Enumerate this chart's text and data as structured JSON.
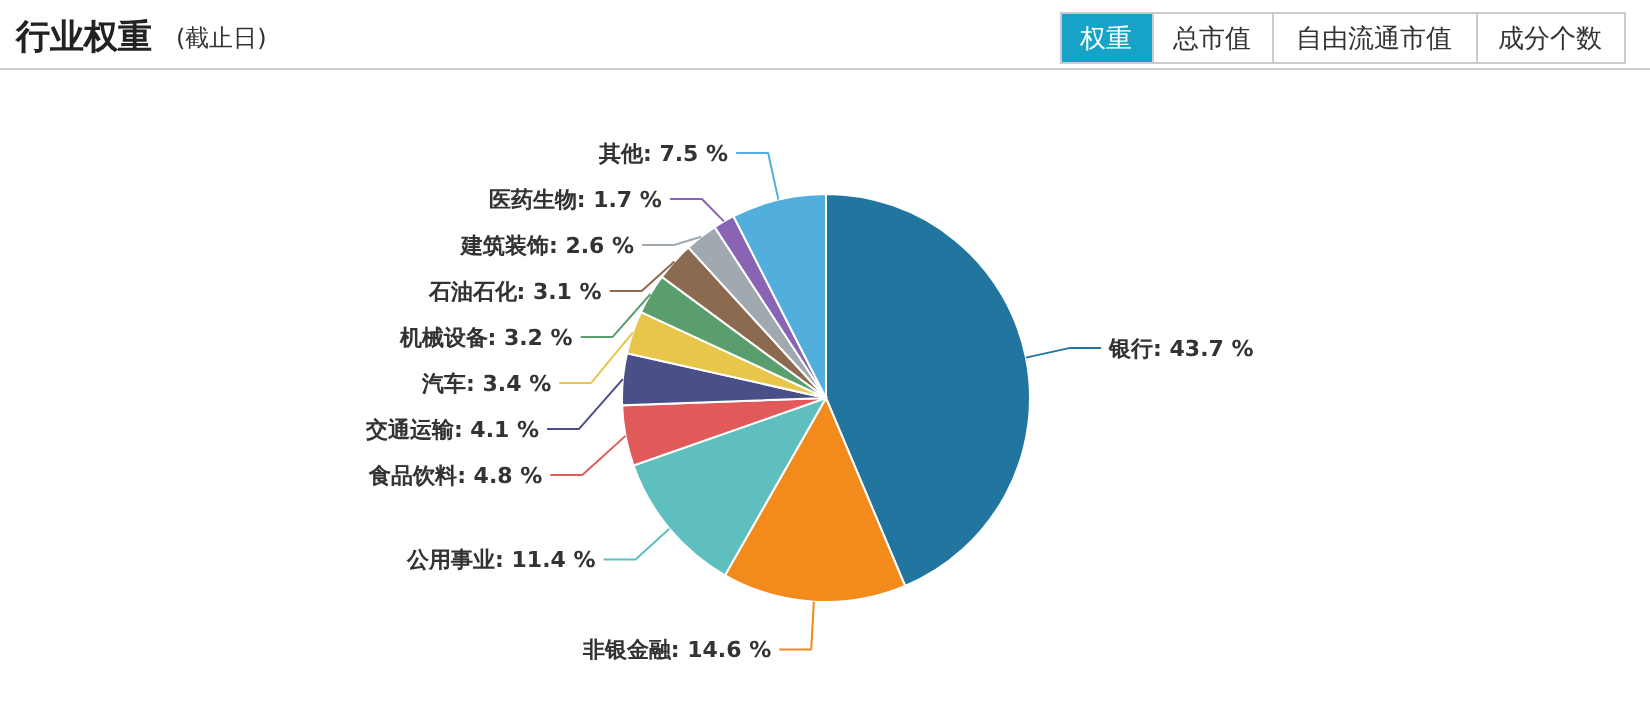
{
  "chart_data": {
    "type": "pie",
    "title": "行业权重",
    "subtitle": "(截止日)",
    "annotations": [
      "权重",
      "总市值",
      "自由流通市值",
      "成分个数"
    ],
    "categories": [
      "银行",
      "非银金融",
      "公用事业",
      "食品饮料",
      "交通运输",
      "汽车",
      "机械设备",
      "石油石化",
      "建筑装饰",
      "医药生物",
      "其他"
    ],
    "values": [
      43.7,
      14.6,
      11.4,
      4.8,
      4.1,
      3.4,
      3.2,
      3.1,
      2.6,
      1.7,
      7.5
    ],
    "value_labels": [
      "43.7 %",
      "14.6 %",
      "11.4 %",
      "4.8 %",
      "4.1 %",
      "3.4 %",
      "3.2 %",
      "3.1 %",
      "2.6 %",
      "1.7 %",
      "7.5 %"
    ],
    "colors": [
      "#21759f",
      "#f28a1c",
      "#5fbfbf",
      "#e05a5a",
      "#4a4f8a",
      "#e8c64a",
      "#5a9e6e",
      "#8b6a50",
      "#a0a8b0",
      "#8a64b4",
      "#52aedc"
    ]
  }
}
